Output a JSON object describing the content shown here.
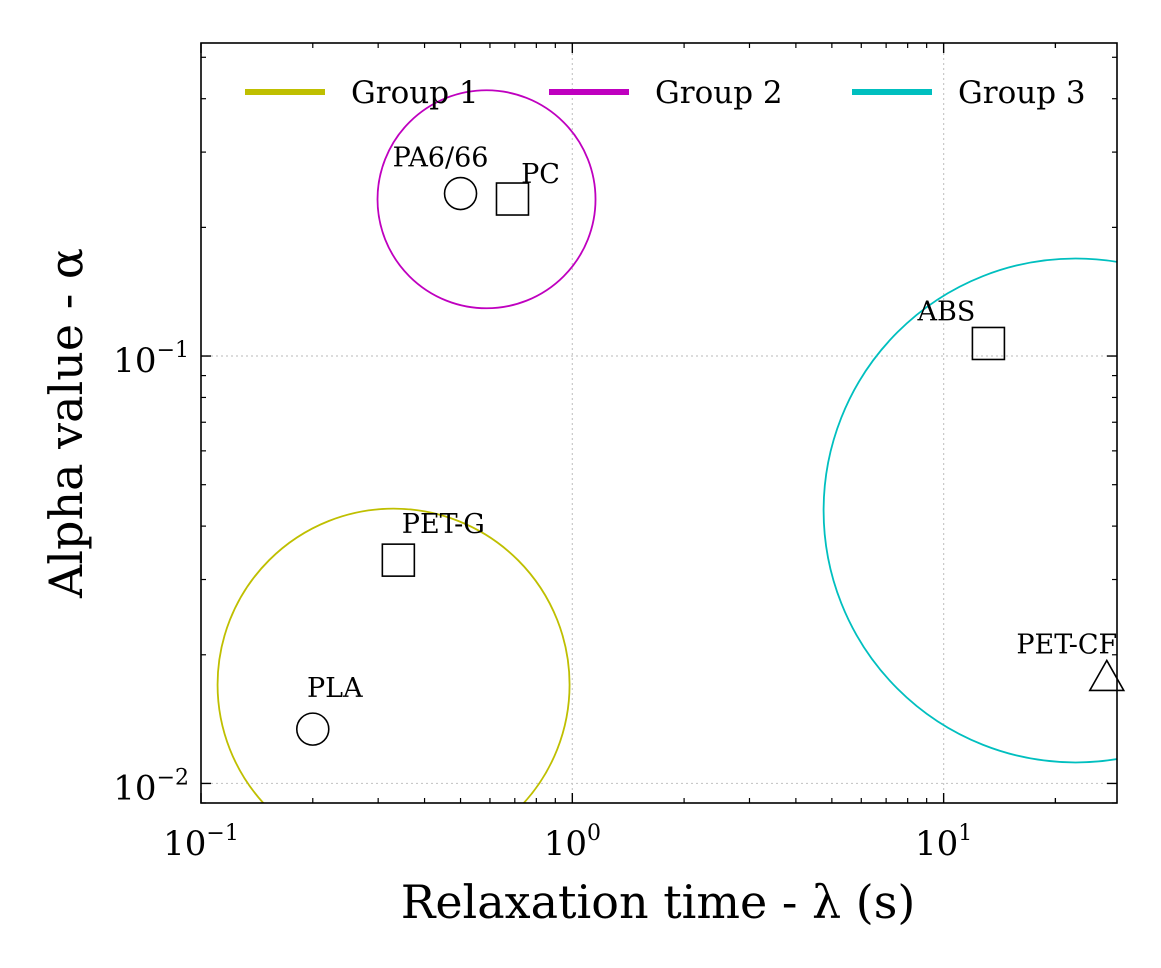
{
  "chart_data": {
    "type": "scatter",
    "title": "",
    "xlabel": "Relaxation time - λ (s)",
    "ylabel": "Alpha value - α",
    "xscale": "log",
    "yscale": "log",
    "xlim": [
      0.1,
      29.3
    ],
    "ylim": [
      0.009,
      0.54
    ],
    "grid": true,
    "legend_position": "top",
    "x_ticks": [
      {
        "value": 0.1,
        "base": "10",
        "exp": "−1"
      },
      {
        "value": 1,
        "base": "10",
        "exp": "0"
      },
      {
        "value": 10,
        "base": "10",
        "exp": "1"
      }
    ],
    "y_ticks": [
      {
        "value": 0.01,
        "base": "10",
        "exp": "−2"
      },
      {
        "value": 0.1,
        "base": "10",
        "exp": "−1"
      }
    ],
    "groups": [
      {
        "name": "Group 1",
        "color": "#bfbf00",
        "members": [
          "PLA",
          "PET-G"
        ]
      },
      {
        "name": "Group 2",
        "color": "#bf00bf",
        "members": [
          "PA6/66",
          "PC"
        ]
      },
      {
        "name": "Group 3",
        "color": "#00bfbf",
        "members": [
          "ABS",
          "PET-CF"
        ]
      }
    ],
    "points": [
      {
        "label": "PLA",
        "x": 0.2,
        "y": 0.0134,
        "marker": "circle"
      },
      {
        "label": "PET-G",
        "x": 0.34,
        "y": 0.0333,
        "marker": "square"
      },
      {
        "label": "PA6/66",
        "x": 0.5,
        "y": 0.24,
        "marker": "circle"
      },
      {
        "label": "PC",
        "x": 0.69,
        "y": 0.233,
        "marker": "square"
      },
      {
        "label": "ABS",
        "x": 13.2,
        "y": 0.107,
        "marker": "square"
      },
      {
        "label": "PET-CF",
        "x": 27.5,
        "y": 0.0177,
        "marker": "triangle"
      }
    ]
  }
}
